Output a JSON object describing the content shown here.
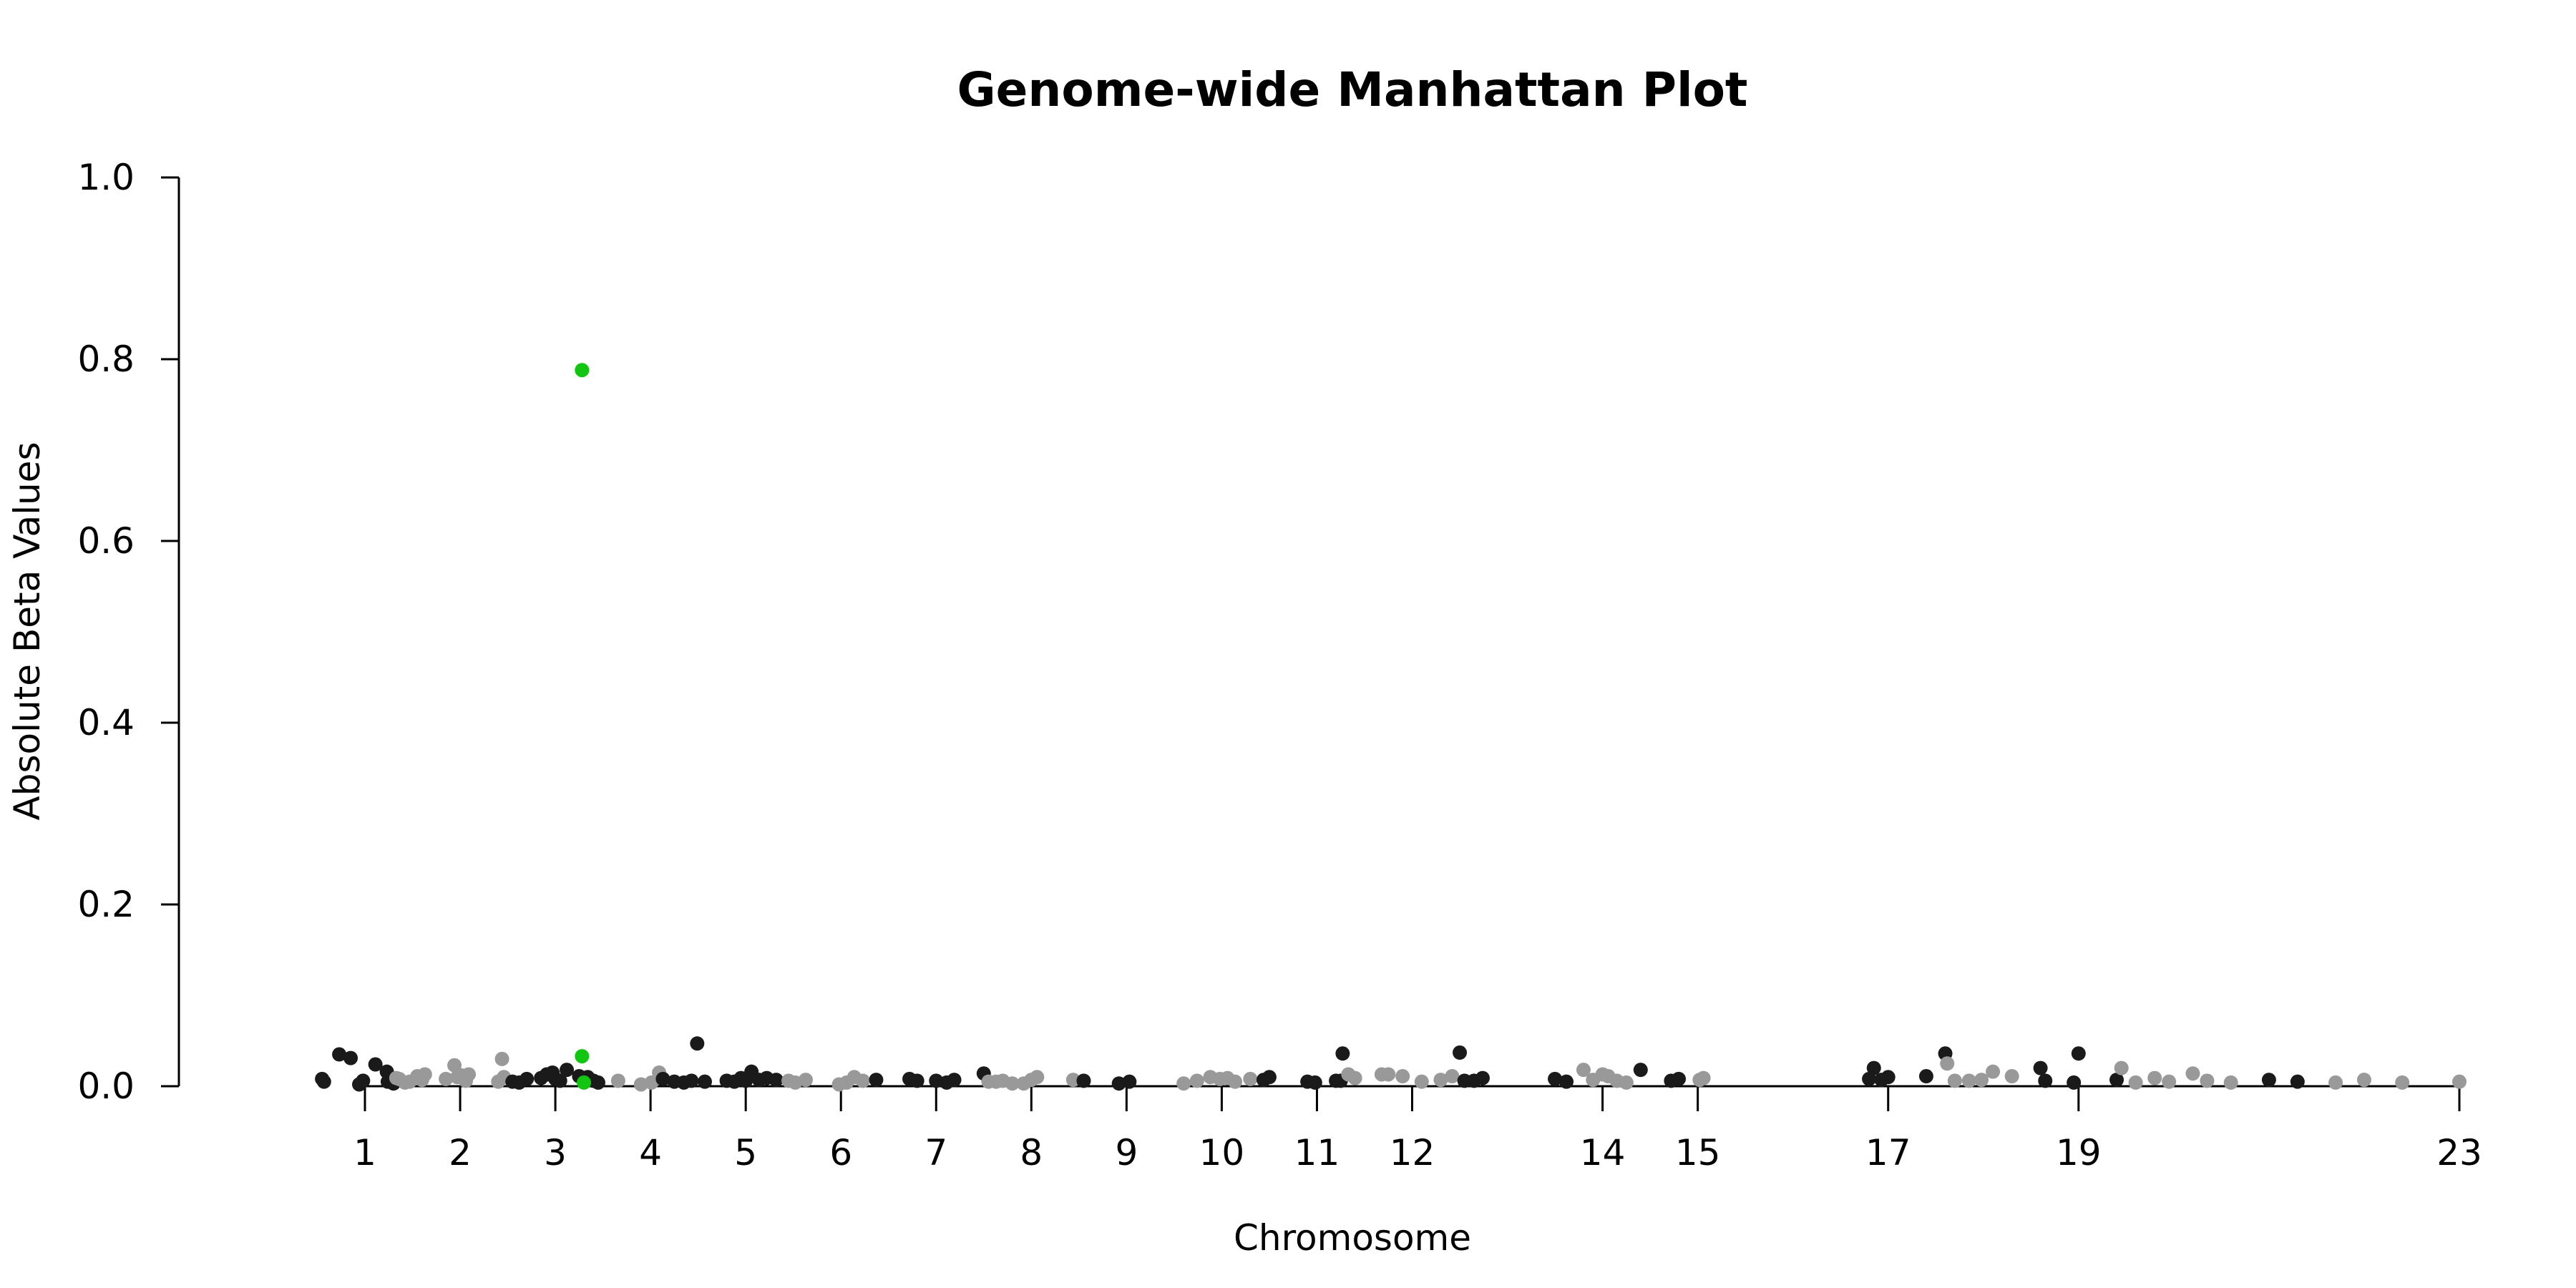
{
  "chart_data": {
    "type": "scatter",
    "title": "Genome-wide Manhattan Plot",
    "xlabel": "Chromosome",
    "ylabel": "Absolute Beta Values",
    "ylim": [
      0,
      1.0
    ],
    "yticks": [
      "0.0",
      "0.2",
      "0.4",
      "0.6",
      "0.8",
      "1.0"
    ],
    "xticks": [
      "1",
      "2",
      "3",
      "4",
      "5",
      "6",
      "7",
      "8",
      "9",
      "10",
      "11",
      "12",
      "14",
      "15",
      "17",
      "19",
      "23"
    ],
    "xtick_positions": [
      1,
      2,
      3,
      4,
      5,
      6,
      7,
      8,
      9,
      10,
      11,
      12,
      14,
      15,
      17,
      19,
      23
    ],
    "grid": false,
    "legend": "none",
    "colors": {
      "black": "#1a1a1a",
      "gray": "#999999",
      "highlight": "#11c511"
    },
    "points": [
      {
        "x": 0.55,
        "y": 0.008,
        "c": "black"
      },
      {
        "x": 0.57,
        "y": 0.005,
        "c": "black"
      },
      {
        "x": 0.73,
        "y": 0.035,
        "c": "black"
      },
      {
        "x": 0.85,
        "y": 0.031,
        "c": "black"
      },
      {
        "x": 0.94,
        "y": 0.002,
        "c": "black"
      },
      {
        "x": 0.98,
        "y": 0.006,
        "c": "black"
      },
      {
        "x": 1.11,
        "y": 0.024,
        "c": "black"
      },
      {
        "x": 1.23,
        "y": 0.016,
        "c": "black"
      },
      {
        "x": 1.24,
        "y": 0.005,
        "c": "black"
      },
      {
        "x": 1.27,
        "y": 0.006,
        "c": "black"
      },
      {
        "x": 1.3,
        "y": 0.003,
        "c": "black"
      },
      {
        "x": 1.33,
        "y": 0.009,
        "c": "gray"
      },
      {
        "x": 1.36,
        "y": 0.008,
        "c": "gray"
      },
      {
        "x": 1.42,
        "y": 0.004,
        "c": "gray"
      },
      {
        "x": 1.47,
        "y": 0.005,
        "c": "gray"
      },
      {
        "x": 1.55,
        "y": 0.011,
        "c": "gray"
      },
      {
        "x": 1.6,
        "y": 0.007,
        "c": "gray"
      },
      {
        "x": 1.63,
        "y": 0.013,
        "c": "gray"
      },
      {
        "x": 1.85,
        "y": 0.008,
        "c": "gray"
      },
      {
        "x": 1.94,
        "y": 0.023,
        "c": "gray"
      },
      {
        "x": 1.97,
        "y": 0.01,
        "c": "gray"
      },
      {
        "x": 2.01,
        "y": 0.012,
        "c": "gray"
      },
      {
        "x": 2.06,
        "y": 0.006,
        "c": "gray"
      },
      {
        "x": 2.09,
        "y": 0.013,
        "c": "gray"
      },
      {
        "x": 2.44,
        "y": 0.03,
        "c": "gray"
      },
      {
        "x": 2.46,
        "y": 0.01,
        "c": "gray"
      },
      {
        "x": 2.4,
        "y": 0.005,
        "c": "gray"
      },
      {
        "x": 2.55,
        "y": 0.005,
        "c": "black"
      },
      {
        "x": 2.62,
        "y": 0.004,
        "c": "black"
      },
      {
        "x": 2.7,
        "y": 0.008,
        "c": "black"
      },
      {
        "x": 2.85,
        "y": 0.009,
        "c": "black"
      },
      {
        "x": 2.91,
        "y": 0.013,
        "c": "black"
      },
      {
        "x": 2.97,
        "y": 0.015,
        "c": "black"
      },
      {
        "x": 3.0,
        "y": 0.008,
        "c": "black"
      },
      {
        "x": 3.05,
        "y": 0.006,
        "c": "black"
      },
      {
        "x": 3.12,
        "y": 0.018,
        "c": "black"
      },
      {
        "x": 3.25,
        "y": 0.011,
        "c": "black"
      },
      {
        "x": 3.34,
        "y": 0.01,
        "c": "black"
      },
      {
        "x": 3.4,
        "y": 0.006,
        "c": "black"
      },
      {
        "x": 3.45,
        "y": 0.004,
        "c": "black"
      },
      {
        "x": 3.28,
        "y": 0.788,
        "c": "highlight"
      },
      {
        "x": 3.28,
        "y": 0.033,
        "c": "highlight"
      },
      {
        "x": 3.3,
        "y": 0.004,
        "c": "highlight"
      },
      {
        "x": 3.66,
        "y": 0.006,
        "c": "gray"
      },
      {
        "x": 3.9,
        "y": 0.002,
        "c": "gray"
      },
      {
        "x": 4.01,
        "y": 0.004,
        "c": "gray"
      },
      {
        "x": 4.09,
        "y": 0.015,
        "c": "gray"
      },
      {
        "x": 4.13,
        "y": 0.008,
        "c": "black"
      },
      {
        "x": 4.25,
        "y": 0.005,
        "c": "black"
      },
      {
        "x": 4.35,
        "y": 0.004,
        "c": "black"
      },
      {
        "x": 4.43,
        "y": 0.006,
        "c": "black"
      },
      {
        "x": 4.49,
        "y": 0.047,
        "c": "black"
      },
      {
        "x": 4.57,
        "y": 0.005,
        "c": "black"
      },
      {
        "x": 4.8,
        "y": 0.006,
        "c": "black"
      },
      {
        "x": 4.88,
        "y": 0.005,
        "c": "black"
      },
      {
        "x": 4.95,
        "y": 0.009,
        "c": "black"
      },
      {
        "x": 5.0,
        "y": 0.006,
        "c": "black"
      },
      {
        "x": 5.06,
        "y": 0.016,
        "c": "black"
      },
      {
        "x": 5.14,
        "y": 0.007,
        "c": "black"
      },
      {
        "x": 5.22,
        "y": 0.009,
        "c": "black"
      },
      {
        "x": 5.32,
        "y": 0.007,
        "c": "black"
      },
      {
        "x": 5.45,
        "y": 0.006,
        "c": "gray"
      },
      {
        "x": 5.52,
        "y": 0.004,
        "c": "gray"
      },
      {
        "x": 5.63,
        "y": 0.007,
        "c": "gray"
      },
      {
        "x": 5.98,
        "y": 0.002,
        "c": "gray"
      },
      {
        "x": 6.06,
        "y": 0.004,
        "c": "gray"
      },
      {
        "x": 6.14,
        "y": 0.01,
        "c": "gray"
      },
      {
        "x": 6.23,
        "y": 0.006,
        "c": "gray"
      },
      {
        "x": 6.37,
        "y": 0.007,
        "c": "black"
      },
      {
        "x": 6.72,
        "y": 0.008,
        "c": "black"
      },
      {
        "x": 6.8,
        "y": 0.006,
        "c": "black"
      },
      {
        "x": 7.0,
        "y": 0.006,
        "c": "black"
      },
      {
        "x": 7.11,
        "y": 0.004,
        "c": "black"
      },
      {
        "x": 7.19,
        "y": 0.007,
        "c": "black"
      },
      {
        "x": 7.5,
        "y": 0.014,
        "c": "black"
      },
      {
        "x": 7.55,
        "y": 0.005,
        "c": "gray"
      },
      {
        "x": 7.63,
        "y": 0.005,
        "c": "gray"
      },
      {
        "x": 7.7,
        "y": 0.006,
        "c": "gray"
      },
      {
        "x": 7.8,
        "y": 0.003,
        "c": "gray"
      },
      {
        "x": 7.92,
        "y": 0.003,
        "c": "gray"
      },
      {
        "x": 8.0,
        "y": 0.007,
        "c": "gray"
      },
      {
        "x": 8.06,
        "y": 0.01,
        "c": "gray"
      },
      {
        "x": 8.44,
        "y": 0.007,
        "c": "gray"
      },
      {
        "x": 8.55,
        "y": 0.006,
        "c": "black"
      },
      {
        "x": 8.92,
        "y": 0.003,
        "c": "black"
      },
      {
        "x": 9.03,
        "y": 0.005,
        "c": "black"
      },
      {
        "x": 9.6,
        "y": 0.003,
        "c": "gray"
      },
      {
        "x": 9.74,
        "y": 0.006,
        "c": "gray"
      },
      {
        "x": 9.88,
        "y": 0.01,
        "c": "gray"
      },
      {
        "x": 9.98,
        "y": 0.008,
        "c": "gray"
      },
      {
        "x": 10.06,
        "y": 0.009,
        "c": "gray"
      },
      {
        "x": 10.14,
        "y": 0.005,
        "c": "gray"
      },
      {
        "x": 10.3,
        "y": 0.008,
        "c": "gray"
      },
      {
        "x": 10.44,
        "y": 0.007,
        "c": "black"
      },
      {
        "x": 10.5,
        "y": 0.01,
        "c": "black"
      },
      {
        "x": 10.9,
        "y": 0.005,
        "c": "black"
      },
      {
        "x": 10.98,
        "y": 0.004,
        "c": "black"
      },
      {
        "x": 11.2,
        "y": 0.006,
        "c": "black"
      },
      {
        "x": 11.25,
        "y": 0.006,
        "c": "black"
      },
      {
        "x": 11.27,
        "y": 0.036,
        "c": "black"
      },
      {
        "x": 11.33,
        "y": 0.013,
        "c": "gray"
      },
      {
        "x": 11.4,
        "y": 0.009,
        "c": "gray"
      },
      {
        "x": 11.68,
        "y": 0.013,
        "c": "gray"
      },
      {
        "x": 11.75,
        "y": 0.013,
        "c": "gray"
      },
      {
        "x": 11.9,
        "y": 0.011,
        "c": "gray"
      },
      {
        "x": 12.1,
        "y": 0.005,
        "c": "gray"
      },
      {
        "x": 12.3,
        "y": 0.007,
        "c": "gray"
      },
      {
        "x": 12.42,
        "y": 0.011,
        "c": "gray"
      },
      {
        "x": 12.5,
        "y": 0.037,
        "c": "black"
      },
      {
        "x": 12.55,
        "y": 0.006,
        "c": "black"
      },
      {
        "x": 12.65,
        "y": 0.006,
        "c": "black"
      },
      {
        "x": 12.74,
        "y": 0.009,
        "c": "black"
      },
      {
        "x": 13.5,
        "y": 0.008,
        "c": "black"
      },
      {
        "x": 13.62,
        "y": 0.005,
        "c": "black"
      },
      {
        "x": 13.8,
        "y": 0.018,
        "c": "gray"
      },
      {
        "x": 13.9,
        "y": 0.007,
        "c": "gray"
      },
      {
        "x": 14.0,
        "y": 0.013,
        "c": "gray"
      },
      {
        "x": 14.06,
        "y": 0.011,
        "c": "gray"
      },
      {
        "x": 14.15,
        "y": 0.006,
        "c": "gray"
      },
      {
        "x": 14.25,
        "y": 0.004,
        "c": "gray"
      },
      {
        "x": 14.4,
        "y": 0.018,
        "c": "black"
      },
      {
        "x": 14.72,
        "y": 0.006,
        "c": "black"
      },
      {
        "x": 14.8,
        "y": 0.008,
        "c": "black"
      },
      {
        "x": 15.02,
        "y": 0.007,
        "c": "gray"
      },
      {
        "x": 15.06,
        "y": 0.009,
        "c": "gray"
      },
      {
        "x": 16.8,
        "y": 0.008,
        "c": "black"
      },
      {
        "x": 16.85,
        "y": 0.02,
        "c": "black"
      },
      {
        "x": 16.93,
        "y": 0.007,
        "c": "black"
      },
      {
        "x": 17.0,
        "y": 0.01,
        "c": "black"
      },
      {
        "x": 17.4,
        "y": 0.011,
        "c": "black"
      },
      {
        "x": 17.6,
        "y": 0.036,
        "c": "black"
      },
      {
        "x": 17.62,
        "y": 0.025,
        "c": "gray"
      },
      {
        "x": 17.7,
        "y": 0.006,
        "c": "gray"
      },
      {
        "x": 17.85,
        "y": 0.006,
        "c": "gray"
      },
      {
        "x": 17.98,
        "y": 0.007,
        "c": "gray"
      },
      {
        "x": 18.1,
        "y": 0.016,
        "c": "gray"
      },
      {
        "x": 18.3,
        "y": 0.011,
        "c": "gray"
      },
      {
        "x": 18.6,
        "y": 0.02,
        "c": "black"
      },
      {
        "x": 18.65,
        "y": 0.006,
        "c": "black"
      },
      {
        "x": 18.95,
        "y": 0.004,
        "c": "black"
      },
      {
        "x": 19.0,
        "y": 0.036,
        "c": "black"
      },
      {
        "x": 19.4,
        "y": 0.007,
        "c": "black"
      },
      {
        "x": 19.45,
        "y": 0.02,
        "c": "gray"
      },
      {
        "x": 19.6,
        "y": 0.004,
        "c": "gray"
      },
      {
        "x": 19.8,
        "y": 0.009,
        "c": "gray"
      },
      {
        "x": 19.95,
        "y": 0.005,
        "c": "gray"
      },
      {
        "x": 20.2,
        "y": 0.014,
        "c": "gray"
      },
      {
        "x": 20.35,
        "y": 0.006,
        "c": "gray"
      },
      {
        "x": 20.6,
        "y": 0.004,
        "c": "gray"
      },
      {
        "x": 21.0,
        "y": 0.007,
        "c": "black"
      },
      {
        "x": 21.3,
        "y": 0.005,
        "c": "black"
      },
      {
        "x": 21.7,
        "y": 0.004,
        "c": "gray"
      },
      {
        "x": 22.0,
        "y": 0.007,
        "c": "gray"
      },
      {
        "x": 22.4,
        "y": 0.004,
        "c": "gray"
      },
      {
        "x": 23.0,
        "y": 0.005,
        "c": "gray"
      }
    ]
  }
}
